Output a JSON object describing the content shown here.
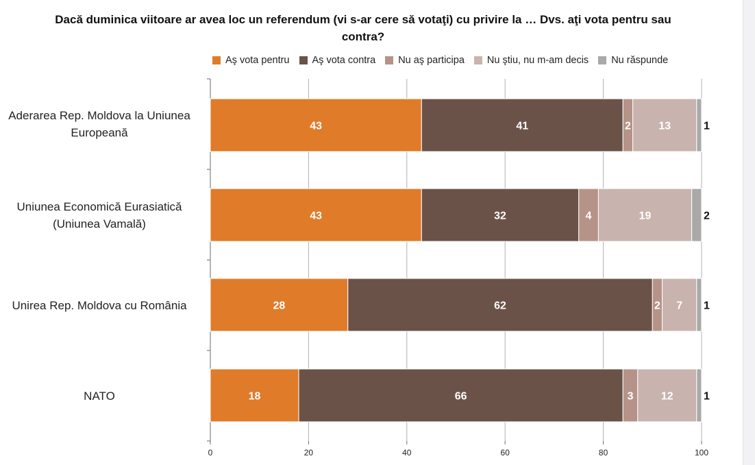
{
  "chart_data": {
    "type": "bar",
    "orientation": "horizontal",
    "stacked": true,
    "title": "Dacă duminica viitoare ar avea loc un referendum (vi s-ar cere să votaţi) cu privire la … Dvs. aţi vota pentru sau contra?",
    "xlabel": "",
    "ylabel": "",
    "xlim": [
      0,
      100
    ],
    "x_ticks": [
      0,
      20,
      40,
      60,
      80,
      100
    ],
    "grid": true,
    "legend_position": "top",
    "categories": [
      "Aderarea Rep. Moldova la Uniunea Europeană",
      "Uniunea Economică Eurasiatică (Uniunea Vamală)",
      "Unirea Rep. Moldova cu România",
      "NATO"
    ],
    "series": [
      {
        "name": "Aş vota pentru",
        "color": "#e07b2a",
        "values": [
          43,
          43,
          28,
          18
        ]
      },
      {
        "name": "Aş vota contra",
        "color": "#6b5248",
        "values": [
          41,
          32,
          62,
          66
        ]
      },
      {
        "name": "Nu aş participa",
        "color": "#b69388",
        "values": [
          2,
          4,
          2,
          3
        ]
      },
      {
        "name": "Nu ştiu, nu m-am decis",
        "color": "#c9b3ae",
        "values": [
          13,
          19,
          7,
          12
        ]
      },
      {
        "name": "Nu răspunde",
        "color": "#a9a9a9",
        "values": [
          1,
          2,
          1,
          1
        ]
      }
    ]
  }
}
